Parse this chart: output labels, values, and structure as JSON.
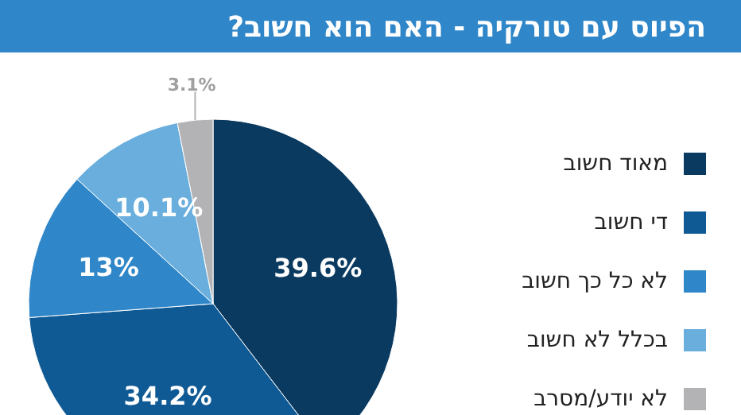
{
  "chart_data": {
    "type": "pie",
    "title": "הפיוס עם טורקיה - האם הוא חשוב?",
    "categories": [
      "מאוד חשוב",
      "די חשוב",
      "לא כל כך חשוב",
      "בכלל לא חשוב",
      "לא יודע/מסרב"
    ],
    "values": [
      39.6,
      34.2,
      13,
      10.1,
      3.1
    ],
    "colors": [
      "#0b3a60",
      "#0f5a94",
      "#2f86c8",
      "#6aaedd",
      "#b3b3b5"
    ],
    "value_labels": [
      "39.6%",
      "34.2%",
      "13%",
      "10.1%",
      "3.1%"
    ],
    "legend": "right"
  }
}
